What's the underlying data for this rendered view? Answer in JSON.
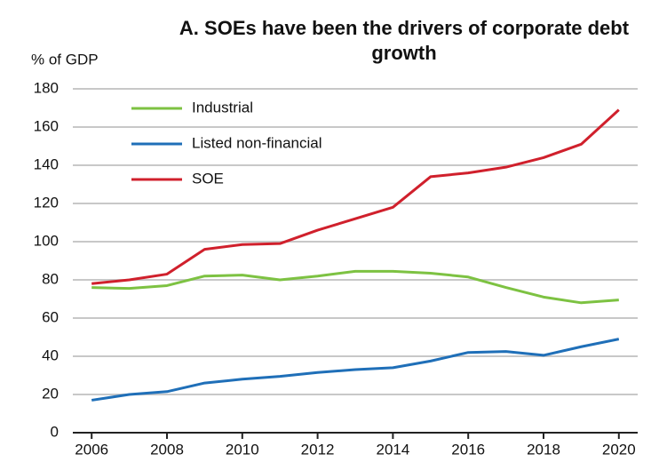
{
  "chart_data": {
    "type": "line",
    "title": "A. SOEs have been the drivers of corporate debt growth",
    "y_label": "% of GDP",
    "x": [
      2006,
      2007,
      2008,
      2009,
      2010,
      2011,
      2012,
      2013,
      2014,
      2015,
      2016,
      2017,
      2018,
      2019,
      2020
    ],
    "series": [
      {
        "name": "Industrial",
        "color": "#7dc242",
        "values": [
          76,
          75.5,
          77,
          82,
          82.5,
          80,
          82,
          84.5,
          84.5,
          83.5,
          81.5,
          76,
          71,
          68,
          69.5
        ]
      },
      {
        "name": "Listed non-financial",
        "color": "#1f6fb8",
        "values": [
          17,
          20,
          21.5,
          26,
          28,
          29.5,
          31.5,
          33,
          34,
          37.5,
          42,
          42.5,
          40.5,
          45,
          49
        ]
      },
      {
        "name": "SOE",
        "color": "#d0202c",
        "values": [
          78,
          80,
          83,
          96,
          98.5,
          99,
          106,
          112,
          118,
          134,
          136,
          139,
          144,
          151,
          169
        ]
      }
    ],
    "xlim": [
      2005.5,
      2020.5
    ],
    "xticks": [
      2006,
      2008,
      2010,
      2012,
      2014,
      2016,
      2018,
      2020
    ],
    "ylim": [
      0,
      180
    ],
    "yticks": [
      0,
      20,
      40,
      60,
      80,
      100,
      120,
      140,
      160,
      180
    ],
    "grid": true,
    "legend": "upper left"
  }
}
